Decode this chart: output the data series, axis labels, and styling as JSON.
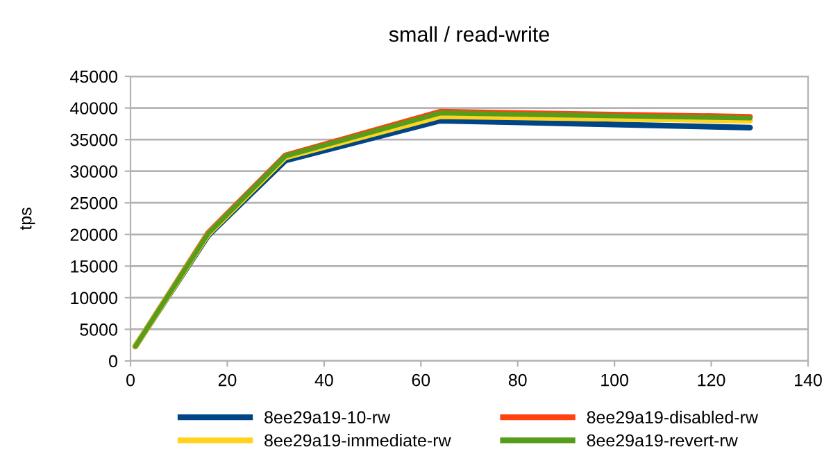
{
  "chart_data": {
    "type": "line",
    "title": "small / read-write",
    "ylabel": "tps",
    "xlim": [
      0,
      140
    ],
    "xticks": [
      0,
      20,
      40,
      60,
      80,
      100,
      120,
      140
    ],
    "ylim": [
      0,
      45000
    ],
    "yticks": [
      0,
      5000,
      10000,
      15000,
      20000,
      25000,
      30000,
      35000,
      40000,
      45000
    ],
    "grid": "y",
    "legend": "bottom",
    "marker": "none",
    "line_style": "solid",
    "x": [
      1,
      16,
      32,
      64,
      128
    ],
    "series": [
      {
        "name": "8ee29a19-10-rw",
        "color": "#004586",
        "values": [
          2300,
          19800,
          31700,
          38000,
          36900
        ]
      },
      {
        "name": "8ee29a19-disabled-rw",
        "color": "#ff420e",
        "values": [
          2300,
          20200,
          32500,
          39400,
          38600
        ]
      },
      {
        "name": "8ee29a19-immediate-rw",
        "color": "#ffd320",
        "values": [
          2300,
          20000,
          32200,
          38700,
          38000
        ]
      },
      {
        "name": "8ee29a19-revert-rw",
        "color": "#579d1c",
        "values": [
          2300,
          20100,
          32400,
          39200,
          38400
        ]
      }
    ]
  }
}
